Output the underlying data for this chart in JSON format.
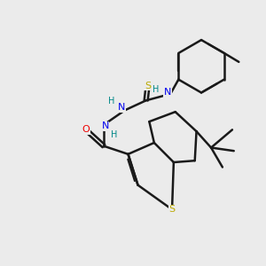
{
  "background_color": "#ebebeb",
  "bond_color": "#1a1a1a",
  "bond_width": 1.8,
  "atom_colors": {
    "C": "#1a1a1a",
    "N": "#0000ee",
    "O": "#ee0000",
    "S": "#bbaa00",
    "H": "#008888"
  },
  "figsize": [
    3.0,
    3.0
  ],
  "dpi": 100
}
